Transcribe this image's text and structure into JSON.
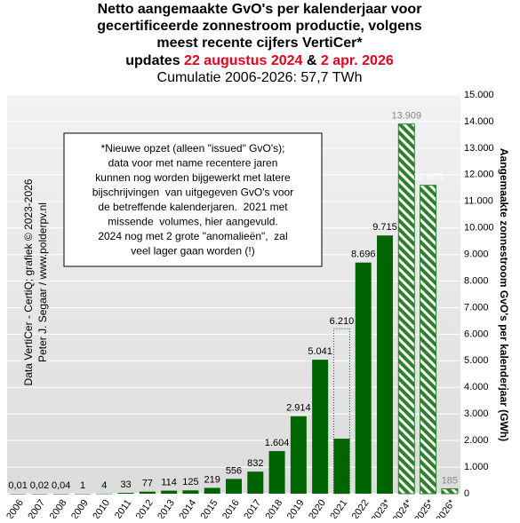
{
  "chart_data": {
    "type": "bar",
    "title": [
      "Netto aangemaakte GvO's per kalenderjaar voor",
      "gecertificeerde zonnestroom productie, volgens",
      "meest recente cijfers VertiCer*"
    ],
    "updates_line": [
      "updates ",
      "22 augustus 2024",
      " & ",
      "2 apr. 2026"
    ],
    "subtitle": "Cumulatie 2006-2026: 57,7 TWh",
    "ylabel": "Aangemaakte zonnestroom GvO's per kalenderjaar (GWh)",
    "credits": [
      "Data VertiCer - CertiQ; grafiek © 2023-2026",
      "Peter J. Segaar / www.polderpv.nl"
    ],
    "annotation": [
      "*Nieuwe opzet (alleen \"issued\" GvO's);",
      "data voor met name recentere jaren",
      "kunnen nog worden bijgewerkt met latere",
      "bijschrijvingen  van uitgegeven GvO's voor",
      "de betreffende kalenderjaren.  2021 met",
      "missende  volumes, hier aangevuld.",
      "2024 nog met 2 grote \"anomalieën\",  zal",
      "veel lager gaan worden (!)"
    ],
    "categories": [
      "2006",
      "2007",
      "2008",
      "2009",
      "2010",
      "2011",
      "2012",
      "2013",
      "2014",
      "2015",
      "2016",
      "2017",
      "2018",
      "2019",
      "2020",
      "2021",
      "2022",
      "2023*",
      "2024*",
      "2025*",
      "2026*"
    ],
    "values": [
      0.01,
      0.02,
      0.04,
      1,
      4,
      33,
      77,
      114,
      125,
      219,
      556,
      832,
      1604,
      2914,
      5041,
      2070,
      8696,
      9715,
      13909,
      11603,
      185
    ],
    "value_labels": [
      "0,01",
      "0,02",
      "0,04",
      "1",
      "4",
      "33",
      "77",
      "114",
      "125",
      "219",
      "556",
      "832",
      "1.604",
      "2.914",
      "5.041",
      null,
      "8.696",
      "9.715",
      "13.909",
      "11.603",
      "185"
    ],
    "bar_styles": [
      "solid",
      "solid",
      "solid",
      "solid",
      "solid",
      "solid",
      "solid",
      "solid",
      "solid",
      "solid",
      "solid",
      "solid",
      "solid",
      "solid",
      "solid",
      "solid",
      "solid",
      "solid",
      "hatched",
      "hatched",
      "hatched"
    ],
    "outline_values": [
      null,
      null,
      null,
      null,
      null,
      null,
      null,
      null,
      null,
      null,
      null,
      null,
      null,
      null,
      null,
      6210,
      null,
      null,
      null,
      null,
      null
    ],
    "outline_labels": [
      null,
      null,
      null,
      null,
      null,
      null,
      null,
      null,
      null,
      null,
      null,
      null,
      null,
      null,
      null,
      "6.210",
      null,
      null,
      null,
      null,
      null
    ],
    "color": "#006400",
    "hatch_color": "#2f7f2f",
    "ylim": [
      0,
      15000
    ],
    "yticks": [
      0,
      {
        "value": 1000,
        "label": "1.000"
      },
      {
        "value": 2000,
        "label": "2.000"
      },
      {
        "value": 3000,
        "label": "3.000"
      },
      {
        "value": 4000,
        "label": "4.000"
      },
      {
        "value": 5000,
        "label": "5.000"
      },
      {
        "value": 6000,
        "label": "6.000"
      },
      {
        "value": 7000,
        "label": "7.000"
      },
      {
        "value": 8000,
        "label": "8.000"
      },
      {
        "value": 9000,
        "label": "9.000"
      },
      {
        "value": 10000,
        "label": "10.000"
      },
      {
        "value": 11000,
        "label": "11.000"
      },
      {
        "value": 12000,
        "label": "12.000"
      },
      {
        "value": 13000,
        "label": "13.000"
      },
      {
        "value": 14000,
        "label": "14.000"
      },
      {
        "value": 15000,
        "label": "15.000"
      }
    ],
    "grid": true
  }
}
